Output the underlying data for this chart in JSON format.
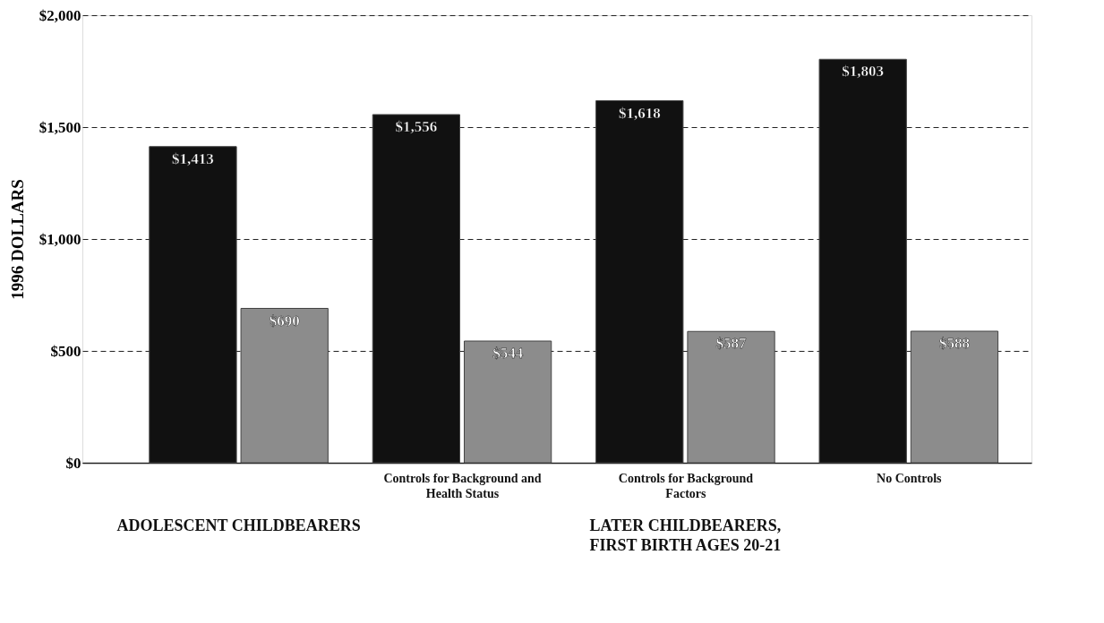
{
  "chart_data": {
    "type": "bar",
    "categories": [
      null,
      "Controls for Background and Health Status",
      "Controls for Background Factors",
      "No Controls"
    ],
    "series": [
      {
        "color": "#111111",
        "values": [
          1413,
          1556,
          1618,
          1803
        ],
        "value_labels": [
          "$1,413",
          "$1,556",
          "$1,618",
          "$1,803"
        ]
      },
      {
        "color": "#8c8c8c",
        "values": [
          690,
          544,
          587,
          588
        ],
        "value_labels": [
          "$690",
          "$544",
          "$587",
          "$588"
        ]
      }
    ],
    "ylabel": "1996 DOLLARS",
    "ylim": [
      0,
      2000
    ],
    "yticks": [
      {
        "value": 0,
        "label": "$0"
      },
      {
        "value": 500,
        "label": "$500"
      },
      {
        "value": 1000,
        "label": "$1,000"
      },
      {
        "value": 1500,
        "label": "$1,500"
      },
      {
        "value": 2000,
        "label": "$2,000"
      }
    ],
    "grid": "y",
    "legend": false,
    "annotations": [
      "ADOLESCENT CHILDBEARERS",
      "LATER CHILDBEARERS, FIRST BIRTH AGES 20-21"
    ]
  }
}
